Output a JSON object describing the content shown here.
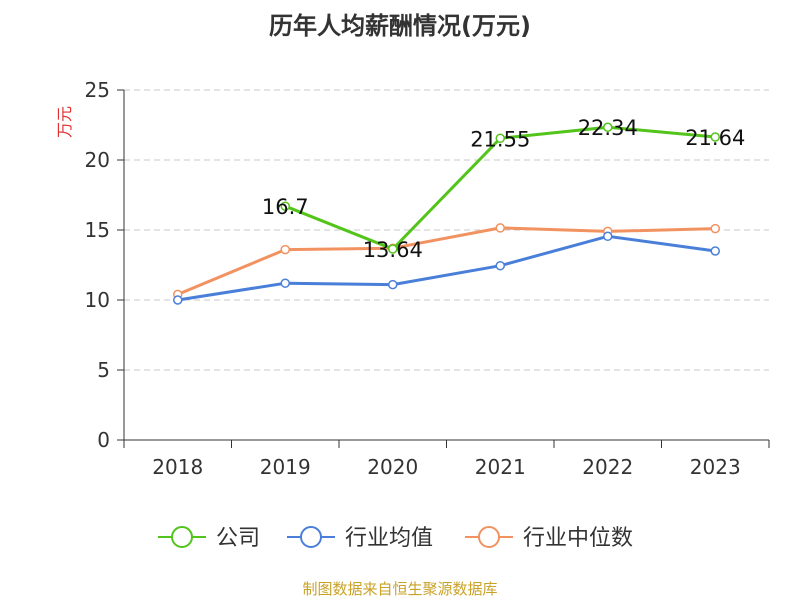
{
  "title": "历年人均薪酬情况(万元)",
  "source": "制图数据来自恒生聚源数据库",
  "colors": {
    "company": "#52c41a",
    "average": "#4a7fd9",
    "median": "#f29260",
    "ylabel": "#e03030"
  },
  "chart_data": {
    "type": "line",
    "title": "历年人均薪酬情况(万元)",
    "xlabel": "",
    "ylabel": "万元",
    "ylim": [
      0,
      25
    ],
    "yticks": [
      0,
      5,
      10,
      15,
      20,
      25
    ],
    "categories": [
      "2018",
      "2019",
      "2020",
      "2021",
      "2022",
      "2023"
    ],
    "grid": true,
    "legend_position": "bottom",
    "series": [
      {
        "name": "公司",
        "color": "#52c41a",
        "values": [
          null,
          16.7,
          13.64,
          21.55,
          22.34,
          21.64
        ],
        "labels": [
          "",
          "16.7",
          "13.64",
          "21.55",
          "22.34",
          "21.64"
        ]
      },
      {
        "name": "行业均值",
        "color": "#4a7fd9",
        "values": [
          10.0,
          11.2,
          11.1,
          12.45,
          14.55,
          13.5
        ]
      },
      {
        "name": "行业中位数",
        "color": "#f29260",
        "values": [
          10.4,
          13.6,
          13.7,
          15.15,
          14.9,
          15.1
        ]
      }
    ]
  }
}
